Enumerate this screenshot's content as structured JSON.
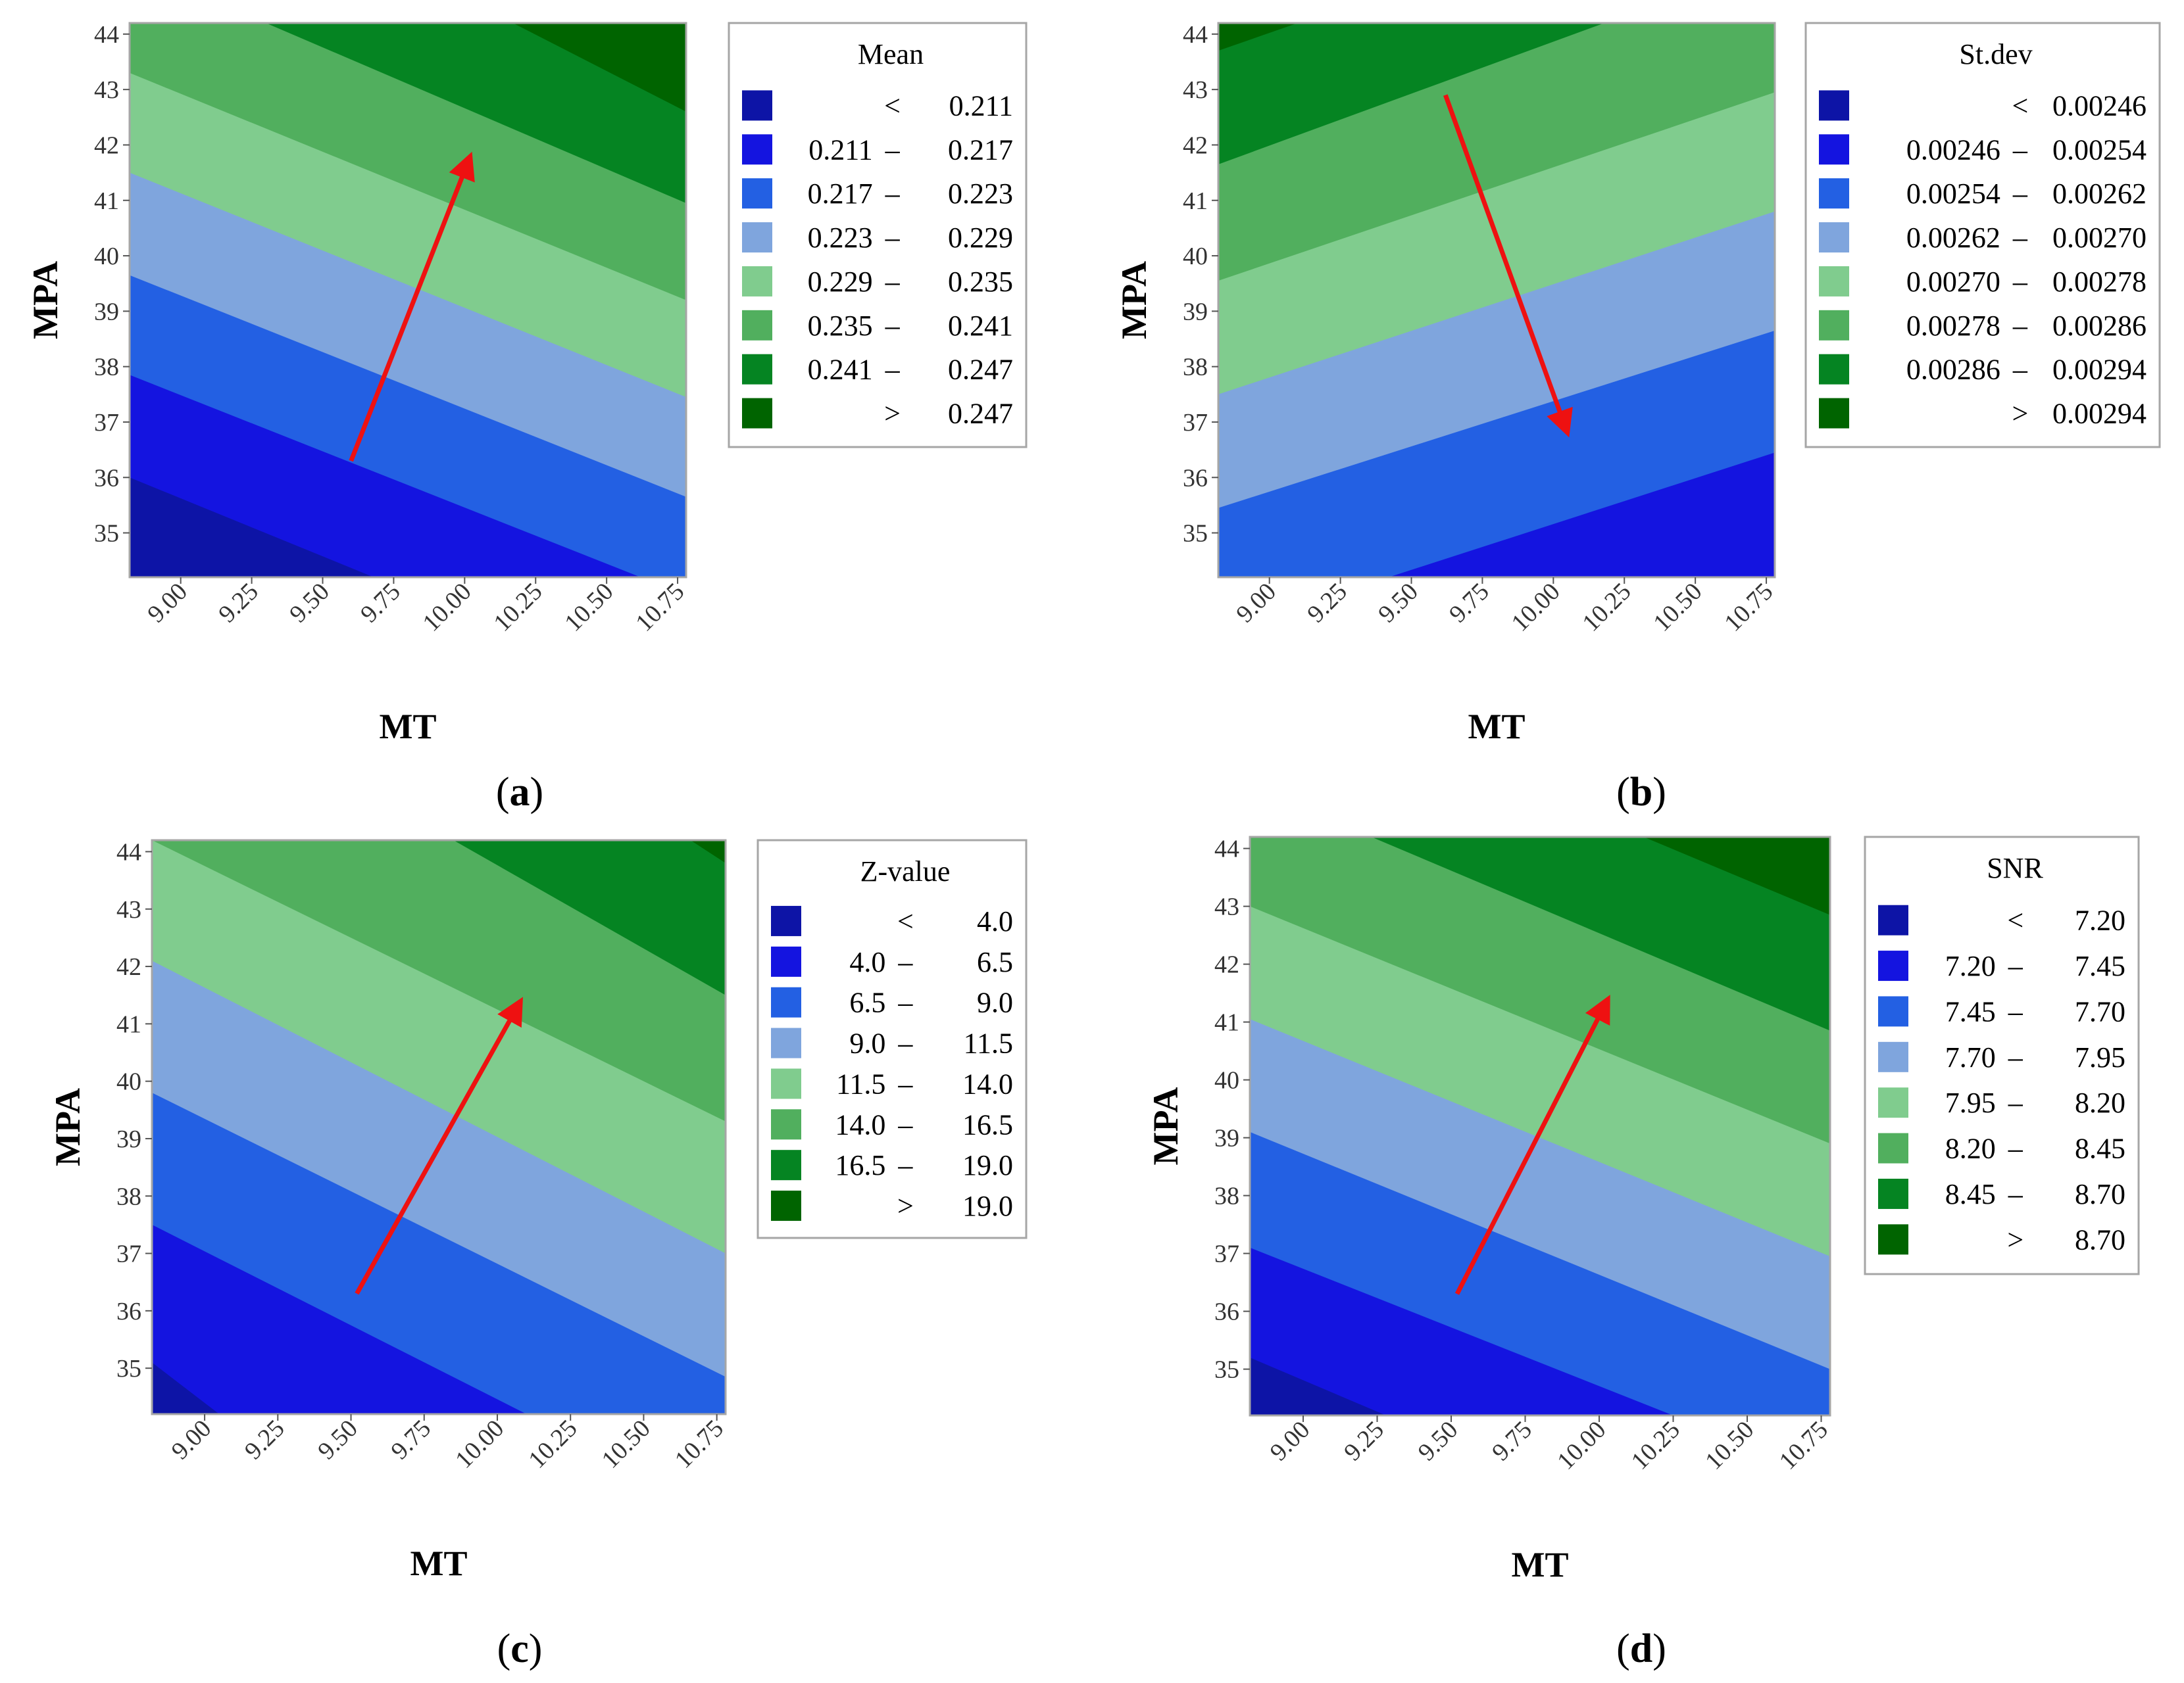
{
  "colors": {
    "levels": [
      "#0D14A6",
      "#1414E0",
      "#2360E3",
      "#7FA5DD",
      "#80CC8E",
      "#51AF5E",
      "#058422",
      "#006400"
    ],
    "arrow": "#EE1111",
    "frame": "#A6A6A6",
    "tick_text": "#333333"
  },
  "chart_data": [
    {
      "type": "contour",
      "panel_label": "a",
      "xlabel": "MT",
      "ylabel": "MPA",
      "xlim": [
        8.82,
        10.78
      ],
      "ylim": [
        34.2,
        44.2
      ],
      "xticks": [
        "9.00",
        "9.25",
        "9.50",
        "9.75",
        "10.00",
        "10.25",
        "10.50",
        "10.75"
      ],
      "yticks": [
        "35",
        "36",
        "37",
        "38",
        "39",
        "40",
        "41",
        "42",
        "43",
        "44"
      ],
      "legend_title": "Mean",
      "legend_items": [
        {
          "lo": "",
          "op": "<",
          "hi": "0.211"
        },
        {
          "lo": "0.211",
          "op": "–",
          "hi": "0.217"
        },
        {
          "lo": "0.217",
          "op": "–",
          "hi": "0.223"
        },
        {
          "lo": "0.223",
          "op": "–",
          "hi": "0.229"
        },
        {
          "lo": "0.229",
          "op": "–",
          "hi": "0.235"
        },
        {
          "lo": "0.235",
          "op": "–",
          "hi": "0.241"
        },
        {
          "lo": "0.241",
          "op": "–",
          "hi": "0.247"
        },
        {
          "lo": "",
          "op": ">",
          "hi": "0.247"
        }
      ],
      "boundaries": [
        {
          "level": 1,
          "from": [
            8.82,
            36.0
          ],
          "to": [
            9.68,
            34.2
          ]
        },
        {
          "level": 2,
          "from": [
            8.82,
            37.85
          ],
          "to": [
            10.62,
            34.2
          ]
        },
        {
          "level": 3,
          "from": [
            8.82,
            39.65
          ],
          "to": [
            10.78,
            35.65
          ]
        },
        {
          "level": 4,
          "from": [
            8.82,
            41.5
          ],
          "to": [
            10.78,
            37.45
          ]
        },
        {
          "level": 5,
          "from": [
            8.82,
            43.3
          ],
          "to": [
            10.78,
            39.2
          ]
        },
        {
          "level": 6,
          "from": [
            9.3,
            44.2
          ],
          "to": [
            10.78,
            40.95
          ]
        },
        {
          "level": 7,
          "from": [
            10.17,
            44.2
          ],
          "to": [
            10.78,
            42.6
          ]
        }
      ],
      "arrow": {
        "from": [
          9.6,
          36.3
        ],
        "to": [
          10.02,
          41.8
        ]
      }
    },
    {
      "type": "contour",
      "panel_label": "b",
      "xlabel": "MT",
      "ylabel": "MPA",
      "xlim": [
        8.82,
        10.78
      ],
      "ylim": [
        34.2,
        44.2
      ],
      "xticks": [
        "9.00",
        "9.25",
        "9.50",
        "9.75",
        "10.00",
        "10.25",
        "10.50",
        "10.75"
      ],
      "yticks": [
        "35",
        "36",
        "37",
        "38",
        "39",
        "40",
        "41",
        "42",
        "43",
        "44"
      ],
      "legend_title": "St.dev",
      "legend_items": [
        {
          "lo": "",
          "op": "<",
          "hi": "0.00246"
        },
        {
          "lo": "0.00246",
          "op": "–",
          "hi": "0.00254"
        },
        {
          "lo": "0.00254",
          "op": "–",
          "hi": "0.00262"
        },
        {
          "lo": "0.00262",
          "op": "–",
          "hi": "0.00270"
        },
        {
          "lo": "0.00270",
          "op": "–",
          "hi": "0.00278"
        },
        {
          "lo": "0.00278",
          "op": "–",
          "hi": "0.00286"
        },
        {
          "lo": "0.00286",
          "op": "–",
          "hi": "0.00294"
        },
        {
          "lo": "",
          "op": ">",
          "hi": "0.00294"
        }
      ],
      "boundaries": [
        {
          "level": 2,
          "from": [
            9.42,
            34.2
          ],
          "to": [
            10.78,
            36.45
          ]
        },
        {
          "level": 3,
          "from": [
            8.82,
            35.45
          ],
          "to": [
            10.78,
            38.65
          ]
        },
        {
          "level": 4,
          "from": [
            8.82,
            37.5
          ],
          "to": [
            10.78,
            40.8
          ]
        },
        {
          "level": 5,
          "from": [
            8.82,
            39.55
          ],
          "to": [
            10.78,
            42.95
          ]
        },
        {
          "level": 6,
          "from": [
            8.82,
            41.65
          ],
          "to": [
            10.18,
            44.2
          ]
        },
        {
          "level": 7,
          "from": [
            8.82,
            43.7
          ],
          "to": [
            9.1,
            44.2
          ]
        }
      ],
      "arrow": {
        "from": [
          9.62,
          42.9
        ],
        "to": [
          10.05,
          36.8
        ]
      }
    },
    {
      "type": "contour",
      "panel_label": "c",
      "xlabel": "MT",
      "ylabel": "MPA",
      "xlim": [
        8.82,
        10.78
      ],
      "ylim": [
        34.2,
        44.2
      ],
      "xticks": [
        "9.00",
        "9.25",
        "9.50",
        "9.75",
        "10.00",
        "10.25",
        "10.50",
        "10.75"
      ],
      "yticks": [
        "35",
        "36",
        "37",
        "38",
        "39",
        "40",
        "41",
        "42",
        "43",
        "44"
      ],
      "legend_title": "Z-value",
      "legend_items": [
        {
          "lo": "",
          "op": "<",
          "hi": "4.0"
        },
        {
          "lo": "4.0",
          "op": "–",
          "hi": "6.5"
        },
        {
          "lo": "6.5",
          "op": "–",
          "hi": "9.0"
        },
        {
          "lo": "9.0",
          "op": "–",
          "hi": "11.5"
        },
        {
          "lo": "11.5",
          "op": "–",
          "hi": "14.0"
        },
        {
          "lo": "14.0",
          "op": "–",
          "hi": "16.5"
        },
        {
          "lo": "16.5",
          "op": "–",
          "hi": "19.0"
        },
        {
          "lo": "",
          "op": ">",
          "hi": "19.0"
        }
      ],
      "boundaries": [
        {
          "level": 1,
          "from": [
            8.82,
            35.1
          ],
          "to": [
            9.05,
            34.2
          ]
        },
        {
          "level": 2,
          "from": [
            8.82,
            37.5
          ],
          "to": [
            10.1,
            34.2
          ]
        },
        {
          "level": 3,
          "from": [
            8.82,
            39.8
          ],
          "to": [
            10.78,
            34.85
          ]
        },
        {
          "level": 4,
          "from": [
            8.82,
            42.1
          ],
          "to": [
            10.78,
            37.0
          ]
        },
        {
          "level": 5,
          "from": [
            8.82,
            44.2
          ],
          "to": [
            10.78,
            39.3
          ]
        },
        {
          "level": 6,
          "from": [
            9.85,
            44.2
          ],
          "to": [
            10.78,
            41.5
          ]
        },
        {
          "level": 7,
          "from": [
            10.66,
            44.2
          ],
          "to": [
            10.78,
            43.8
          ]
        }
      ],
      "arrow": {
        "from": [
          9.52,
          36.3
        ],
        "to": [
          10.08,
          41.4
        ]
      }
    },
    {
      "type": "contour",
      "panel_label": "d",
      "xlabel": "MT",
      "ylabel": "MPA",
      "xlim": [
        8.82,
        10.78
      ],
      "ylim": [
        34.2,
        44.2
      ],
      "xticks": [
        "9.00",
        "9.25",
        "9.50",
        "9.75",
        "10.00",
        "10.25",
        "10.50",
        "10.75"
      ],
      "yticks": [
        "35",
        "36",
        "37",
        "38",
        "39",
        "40",
        "41",
        "42",
        "43",
        "44"
      ],
      "legend_title": "SNR",
      "legend_items": [
        {
          "lo": "",
          "op": "<",
          "hi": "7.20"
        },
        {
          "lo": "7.20",
          "op": "–",
          "hi": "7.45"
        },
        {
          "lo": "7.45",
          "op": "–",
          "hi": "7.70"
        },
        {
          "lo": "7.70",
          "op": "–",
          "hi": "7.95"
        },
        {
          "lo": "7.95",
          "op": "–",
          "hi": "8.20"
        },
        {
          "lo": "8.20",
          "op": "–",
          "hi": "8.45"
        },
        {
          "lo": "8.45",
          "op": "–",
          "hi": "8.70"
        },
        {
          "lo": "",
          "op": ">",
          "hi": "8.70"
        }
      ],
      "boundaries": [
        {
          "level": 1,
          "from": [
            8.82,
            35.2
          ],
          "to": [
            9.28,
            34.2
          ]
        },
        {
          "level": 2,
          "from": [
            8.82,
            37.1
          ],
          "to": [
            10.25,
            34.2
          ]
        },
        {
          "level": 3,
          "from": [
            8.82,
            39.1
          ],
          "to": [
            10.78,
            35.0
          ]
        },
        {
          "level": 4,
          "from": [
            8.82,
            41.05
          ],
          "to": [
            10.78,
            36.95
          ]
        },
        {
          "level": 5,
          "from": [
            8.82,
            43.0
          ],
          "to": [
            10.78,
            38.9
          ]
        },
        {
          "level": 6,
          "from": [
            9.23,
            44.2
          ],
          "to": [
            10.78,
            40.85
          ]
        },
        {
          "level": 7,
          "from": [
            10.15,
            44.2
          ],
          "to": [
            10.78,
            42.85
          ]
        }
      ],
      "arrow": {
        "from": [
          9.52,
          36.3
        ],
        "to": [
          10.03,
          41.4
        ]
      }
    }
  ]
}
